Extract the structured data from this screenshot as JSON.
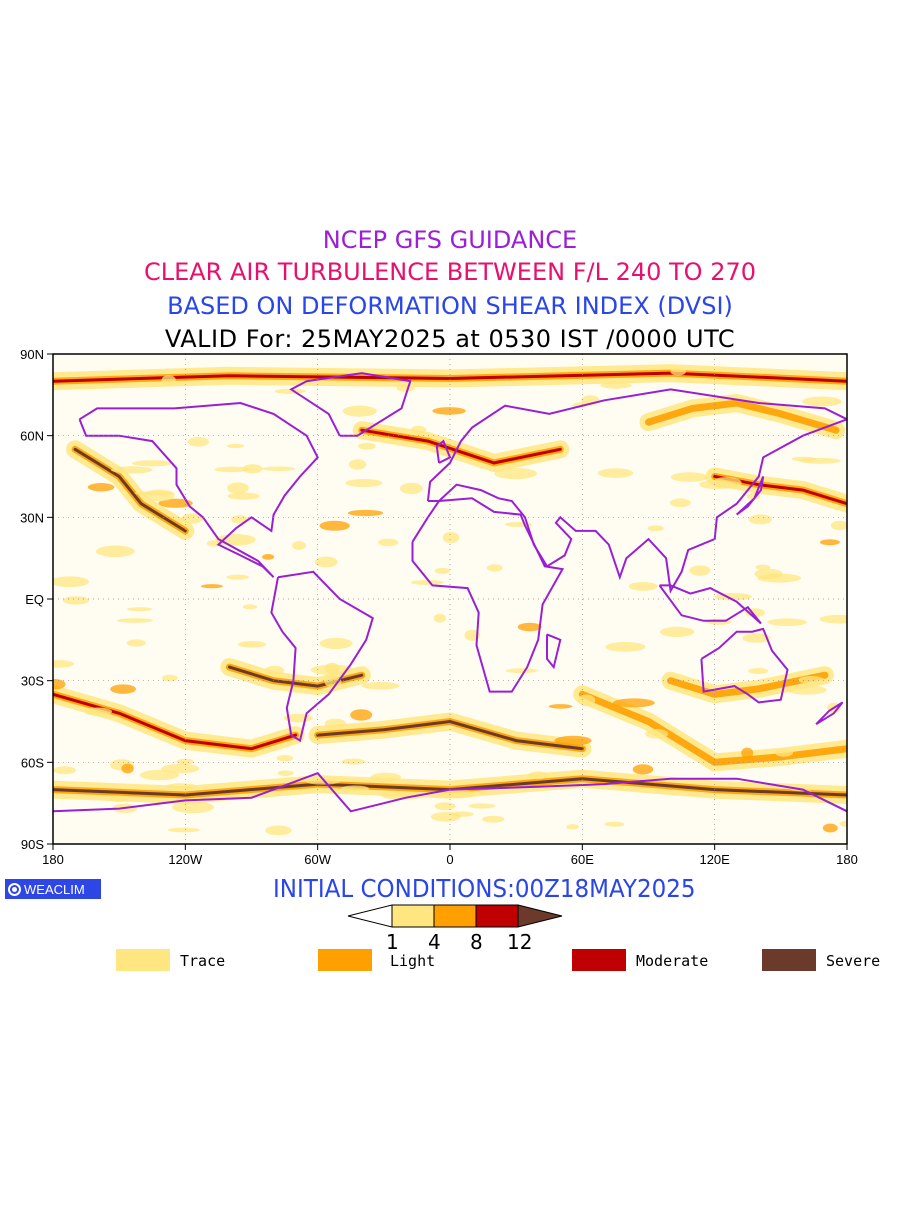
{
  "titles": {
    "line1": "NCEP GFS GUIDANCE",
    "line2": "CLEAR AIR TURBULENCE BETWEEN F/L 240 TO 270",
    "line3": "BASED ON DEFORMATION SHEAR INDEX (DVSI)",
    "line4": "VALID For: 25MAY2025 at 0530 IST /0000 UTC"
  },
  "colors": {
    "line1": "#9b1fd6",
    "line2": "#e8106e",
    "line3": "#2a45e8",
    "line4": "#000000",
    "coast": "#9a1fd4",
    "trace": "#ffe680",
    "light": "#ffa000",
    "moderate": "#c00000",
    "severe": "#6b3a2a",
    "initcond": "#2a45e8"
  },
  "axes": {
    "lat_labels": [
      "90N",
      "60N",
      "30N",
      "EQ",
      "30S",
      "60S",
      "90S"
    ],
    "lon_labels": [
      "180",
      "120W",
      "60W",
      "0",
      "60E",
      "120E",
      "180"
    ]
  },
  "logo": {
    "text": "WEACLIM"
  },
  "initial_conditions": "INITIAL CONDITIONS:00Z18MAY2025",
  "colorbar": {
    "ticks": [
      "1",
      "4",
      "8",
      "12"
    ]
  },
  "legend": [
    {
      "label": "Trace",
      "color": "#ffe680"
    },
    {
      "label": "Light",
      "color": "#ffa000"
    },
    {
      "label": "Moderate",
      "color": "#c00000"
    },
    {
      "label": "Severe",
      "color": "#6b3a2a"
    }
  ]
}
